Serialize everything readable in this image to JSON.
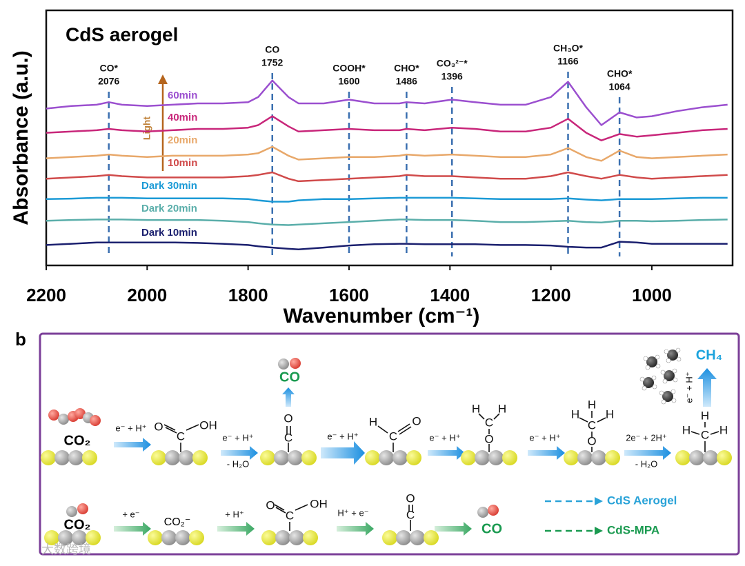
{
  "chart_data": {
    "type": "line",
    "title": "CdS aerogel",
    "xlabel": "Wavenumber (cm⁻¹)",
    "ylabel": "Absorbance (a.u.)",
    "xlim": [
      2200,
      840
    ],
    "ylim": [
      0,
      100
    ],
    "xticks": [
      2200,
      2000,
      1800,
      1600,
      1400,
      1200,
      1000
    ],
    "x": [
      2200,
      2150,
      2100,
      2076,
      2050,
      2000,
      1950,
      1900,
      1850,
      1800,
      1780,
      1752,
      1720,
      1700,
      1650,
      1600,
      1550,
      1500,
      1486,
      1450,
      1396,
      1350,
      1300,
      1250,
      1200,
      1166,
      1130,
      1100,
      1064,
      1030,
      1000,
      950,
      900,
      850
    ],
    "series": [
      {
        "name": "60min",
        "color": "#9b4fcf",
        "values": [
          61.5,
          62.5,
          63,
          64,
          63,
          62.5,
          63,
          63.5,
          63.5,
          64,
          66,
          72.5,
          66,
          63.5,
          63.5,
          65,
          63.5,
          63.5,
          64,
          63.5,
          65,
          64,
          63,
          63,
          66,
          72,
          62,
          55,
          60,
          58,
          58.5,
          60.5,
          62,
          63
        ]
      },
      {
        "name": "40min",
        "color": "#c8267a",
        "values": [
          52,
          52.5,
          53,
          53.5,
          53,
          52.5,
          53,
          53.5,
          53.5,
          54,
          55,
          58.5,
          54.5,
          52.5,
          53,
          53.5,
          53,
          53,
          53.5,
          53,
          54,
          53.5,
          52.5,
          52.5,
          54,
          57.5,
          52,
          49,
          51.5,
          50.5,
          51,
          52,
          53,
          53.5
        ]
      },
      {
        "name": "20min",
        "color": "#e8a86a",
        "values": [
          42,
          42.5,
          43,
          43.5,
          43,
          42.5,
          43,
          43,
          43,
          43.5,
          44,
          46.5,
          43,
          41.5,
          42,
          42.5,
          42.5,
          43,
          43.5,
          43,
          43.5,
          43,
          42.5,
          42.5,
          43.5,
          46,
          42.5,
          41,
          45,
          42.5,
          42,
          42.5,
          43,
          43.5
        ]
      },
      {
        "name": "10min",
        "color": "#d04a4a",
        "values": [
          34,
          34.5,
          35,
          35.5,
          35,
          34.5,
          34.5,
          34.5,
          34.5,
          35,
          35.5,
          36.5,
          34,
          33,
          33.5,
          34,
          34.5,
          35,
          35.5,
          35,
          35,
          34.5,
          34,
          34,
          35,
          36.5,
          35,
          34,
          35.5,
          34.5,
          34,
          34.5,
          35,
          35.5
        ]
      },
      {
        "name": "Dark 30min",
        "color": "#1b9ad6",
        "values": [
          26,
          26.2,
          26.5,
          26.5,
          26.5,
          26.3,
          26.3,
          26.3,
          26.3,
          26,
          25.5,
          25,
          25,
          25.5,
          26,
          26,
          26.3,
          26.5,
          26.5,
          26.5,
          26.5,
          26.3,
          26,
          26,
          26,
          26.3,
          25.8,
          25.5,
          26,
          26,
          26,
          26.3,
          26.5,
          26.5
        ]
      },
      {
        "name": "Dark 20min",
        "color": "#5aaeaa",
        "values": [
          17.5,
          17.8,
          18,
          18,
          18,
          17.8,
          17.8,
          17.8,
          17.5,
          17,
          16.5,
          16,
          15.8,
          16,
          16.5,
          17,
          17.5,
          18,
          18,
          17.8,
          17.8,
          17.5,
          17,
          17,
          17.3,
          17.5,
          17,
          16.8,
          17.5,
          17.5,
          17.3,
          17.5,
          17.8,
          18
        ]
      },
      {
        "name": "Dark 10min",
        "color": "#1a1f6e",
        "values": [
          8,
          8.5,
          9,
          9,
          9,
          9,
          9,
          8.8,
          8.5,
          8,
          7.5,
          7,
          6.5,
          6.3,
          7,
          7.8,
          8.3,
          8.5,
          8.5,
          8.3,
          8.3,
          8.3,
          8,
          8,
          7.8,
          7.3,
          7,
          7,
          9.3,
          9,
          8.5,
          8.5,
          8.5,
          8.5
        ]
      }
    ],
    "annotations": [
      {
        "species": "CO*",
        "x": 2076
      },
      {
        "species": "CO",
        "x": 1752
      },
      {
        "species": "COOH*",
        "x": 1600
      },
      {
        "species": "CHO*",
        "x": 1486
      },
      {
        "species": "CO₃²⁻*",
        "x": 1396
      },
      {
        "species": "CH₃O*",
        "x": 1166
      },
      {
        "species": "CHO*",
        "x": 1064
      }
    ],
    "arrow_label": "Light"
  },
  "diagram": {
    "label": "b",
    "atoms": {
      "o": "O",
      "c": "C",
      "h": "H",
      "oh": "OH"
    },
    "top": {
      "reactant": "CO₂",
      "steps": [
        "e⁻ + H⁺",
        "e⁻ + H⁺",
        "- H₂O",
        "e⁻ + H⁺",
        "e⁻ + H⁺",
        "e⁻ + H⁺",
        "2e⁻ + 2H⁺",
        "- H₂O"
      ],
      "co_product": "CO",
      "ch4_step": "e⁻ + H⁺",
      "ch4_product": "CH₄"
    },
    "bottom": {
      "reactant": "CO₂",
      "steps": [
        "+ e⁻",
        "+ H⁺",
        "H⁺ + e⁻"
      ],
      "anion": "CO₂⁻",
      "product": "CO"
    },
    "legend": [
      "CdS Aerogel",
      "CdS-MPA"
    ],
    "watermark": "大数跨境"
  }
}
